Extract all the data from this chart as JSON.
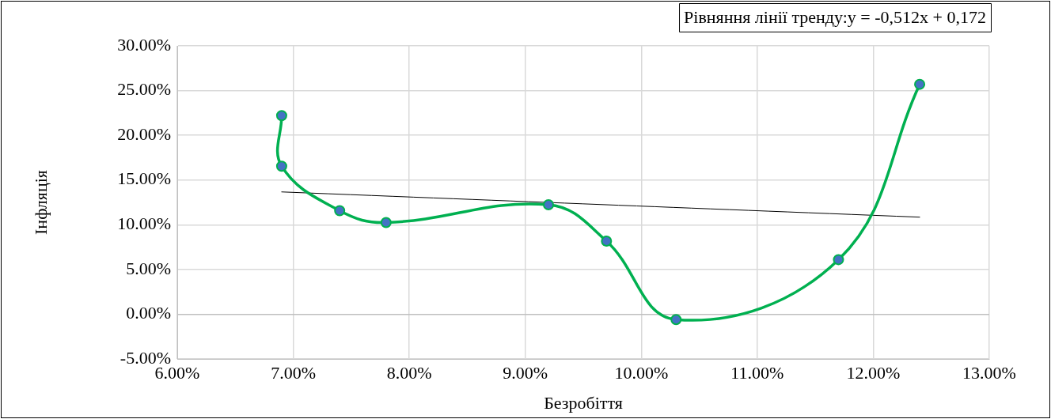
{
  "chart_data": {
    "type": "line",
    "xlabel": "Безробіття",
    "ylabel": "Інфляція",
    "annotations": [
      "Рівняння лінії тренду:y = -0,512x + 0,172"
    ],
    "series": [
      {
        "color": "#00b050",
        "colors": [
          "#4472c4",
          "#4472c4",
          "#4472c4",
          "#4472c4",
          "#4472c4",
          "#4472c4",
          "#4472c4",
          "#4472c4",
          "#4472c4"
        ],
        "x": [
          6.9,
          6.9,
          7.4,
          7.8,
          9.2,
          9.7,
          10.3,
          11.7,
          12.4
        ],
        "values": [
          22.2,
          16.55,
          11.57,
          10.25,
          12.24,
          8.17,
          -0.6,
          6.1,
          25.7
        ],
        "marker": "circle"
      },
      {
        "type": "line",
        "color": "#000000",
        "x": [
          6.9,
          12.4
        ],
        "values": [
          13.67,
          10.85
        ],
        "marker": "none"
      }
    ],
    "xlim": [
      6,
      13
    ],
    "xticks": [
      {
        "value": 6,
        "label": "6.00%"
      },
      {
        "value": 7,
        "label": "7.00%"
      },
      {
        "value": 8,
        "label": "8.00%"
      },
      {
        "value": 9,
        "label": "9.00%"
      },
      {
        "value": 10,
        "label": "10.00%"
      },
      {
        "value": 11,
        "label": "11.00%"
      },
      {
        "value": 12,
        "label": "12.00%"
      },
      {
        "value": 13,
        "label": "13.00%"
      }
    ],
    "ylim": [
      -5,
      30
    ],
    "yticks": [
      {
        "value": -5,
        "label": "-5.00%"
      },
      {
        "value": 0,
        "label": "0.00%"
      },
      {
        "value": 5,
        "label": "5.00%"
      },
      {
        "value": 10,
        "label": "10.00%"
      },
      {
        "value": 15,
        "label": "15.00%"
      },
      {
        "value": 20,
        "label": "20.00%"
      },
      {
        "value": 25,
        "label": "25.00%"
      },
      {
        "value": 30,
        "label": "30.00%"
      }
    ],
    "grid": true,
    "legend": false
  }
}
